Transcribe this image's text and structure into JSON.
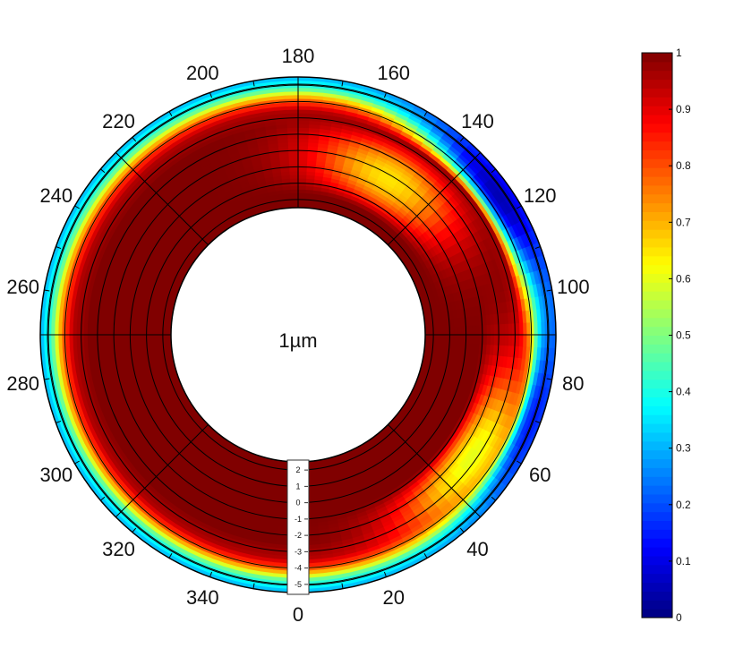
{
  "chart_data": {
    "type": "heatmap",
    "projection": "polar",
    "title": "",
    "center_label": "1µm",
    "angle_ticks": [
      {
        "value": 0,
        "label": "0"
      },
      {
        "value": 20,
        "label": "20"
      },
      {
        "value": 40,
        "label": "40"
      },
      {
        "value": 60,
        "label": "60"
      },
      {
        "value": 80,
        "label": "80"
      },
      {
        "value": 100,
        "label": "100"
      },
      {
        "value": 120,
        "label": "120"
      },
      {
        "value": 140,
        "label": "140"
      },
      {
        "value": 160,
        "label": "160"
      },
      {
        "value": 180,
        "label": "180"
      },
      {
        "value": 200,
        "label": "200"
      },
      {
        "value": 220,
        "label": "220"
      },
      {
        "value": 240,
        "label": "240"
      },
      {
        "value": 260,
        "label": "260"
      },
      {
        "value": 280,
        "label": "280"
      },
      {
        "value": 300,
        "label": "300"
      },
      {
        "value": 320,
        "label": "320"
      },
      {
        "value": 340,
        "label": "340"
      }
    ],
    "radial_ticks": [
      {
        "value": 2,
        "label": "2"
      },
      {
        "value": 1,
        "label": "1"
      },
      {
        "value": 0,
        "label": "0"
      },
      {
        "value": -1,
        "label": "-1"
      },
      {
        "value": -2,
        "label": "-2"
      },
      {
        "value": -3,
        "label": "-3"
      },
      {
        "value": -4,
        "label": "-4"
      },
      {
        "value": -5,
        "label": "-5"
      }
    ],
    "radial_range": [
      -5.5,
      2.5
    ],
    "colorbar": {
      "range": [
        0,
        1
      ],
      "colormap": "jet",
      "ticks": [
        {
          "value": 0,
          "label": "0"
        },
        {
          "value": 0.1,
          "label": "0.1"
        },
        {
          "value": 0.2,
          "label": "0.2"
        },
        {
          "value": 0.3,
          "label": "0.3"
        },
        {
          "value": 0.4,
          "label": "0.4"
        },
        {
          "value": 0.5,
          "label": "0.5"
        },
        {
          "value": 0.6,
          "label": "0.6"
        },
        {
          "value": 0.7,
          "label": "0.7"
        },
        {
          "value": 0.8,
          "label": "0.8"
        },
        {
          "value": 0.9,
          "label": "0.9"
        },
        {
          "value": 1,
          "label": "1"
        }
      ]
    },
    "field": {
      "description_units": "angle in degrees, radial position in chart units, value 0-1",
      "radial_profile": [
        {
          "r": 2.5,
          "value": 1.0
        },
        {
          "r": -2.5,
          "value": 1.0
        },
        {
          "r": -3.5,
          "value": 0.95
        },
        {
          "r": -4.2,
          "value": 0.75
        },
        {
          "r": -4.8,
          "value": 0.45
        },
        {
          "r": -5.5,
          "value": 0.3
        }
      ],
      "angular_features": [
        {
          "angle": 125,
          "r_from": -5.5,
          "r_to": -3.8,
          "value": 0.05
        },
        {
          "angle": 150,
          "r_from": -2.5,
          "r_to": 1.0,
          "value": 0.65
        },
        {
          "angle": 55,
          "r_from": -4.0,
          "r_to": -1.5,
          "value": 0.6
        },
        {
          "angle": 70,
          "r_from": -5.5,
          "r_to": -4.5,
          "value": 0.15
        }
      ]
    }
  }
}
